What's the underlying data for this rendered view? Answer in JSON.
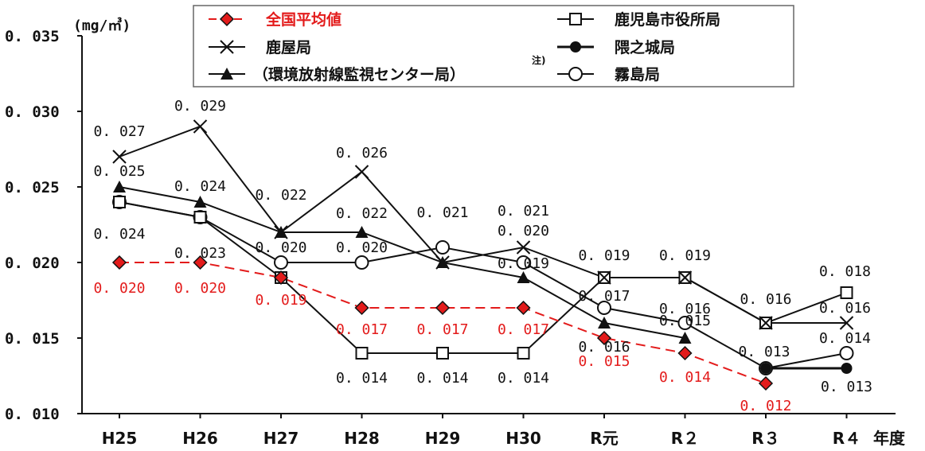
{
  "chart_data": {
    "type": "line",
    "unit": "(mg/㎥)",
    "xlabel": "年度",
    "categories": [
      "H25",
      "H26",
      "H27",
      "H28",
      "H29",
      "H30",
      "R元",
      "R２",
      "R３",
      "R４"
    ],
    "yticks": [
      "0.010",
      "0.015",
      "0.020",
      "0.025",
      "0.030",
      "0.035"
    ],
    "ylim": [
      0.01,
      0.035
    ],
    "note": "注)",
    "legend_placement": "top",
    "series": [
      {
        "name": "全国平均値",
        "color": "#e31b1b",
        "dash": true,
        "marker": "diamond",
        "values": [
          0.02,
          0.02,
          0.019,
          0.017,
          0.017,
          0.017,
          0.015,
          0.014,
          0.012,
          null
        ],
        "labels": [
          "0.020",
          "0.020",
          "0.019",
          "0.017",
          "0.017",
          "0.017",
          "0.015",
          "0.014",
          "0.012",
          ""
        ]
      },
      {
        "name": "鹿屋局",
        "color": "#111111",
        "marker": "x",
        "values": [
          0.027,
          0.029,
          0.022,
          0.026,
          0.02,
          0.021,
          0.019,
          0.019,
          0.016,
          0.016
        ],
        "labels": [
          "0.027",
          "0.029",
          "0.022",
          "0.026",
          "",
          "0.021",
          "0.019",
          "0.019",
          "0.016",
          "0.016"
        ]
      },
      {
        "name": "（環境放射線監視センター局）",
        "color": "#111111",
        "marker": "triangle",
        "values": [
          0.025,
          0.024,
          0.022,
          0.022,
          0.02,
          0.019,
          0.016,
          0.015,
          null,
          null
        ],
        "labels": [
          "0.025",
          "0.024",
          "",
          "0.022",
          "",
          "0.019",
          "0.016",
          "0.015",
          "",
          ""
        ]
      },
      {
        "name": "鹿児島市役所局",
        "color": "#111111",
        "marker": "square",
        "values": [
          0.024,
          0.023,
          0.019,
          0.014,
          0.014,
          0.014,
          0.019,
          0.019,
          0.016,
          0.018
        ],
        "labels": [
          "0.024",
          "0.023",
          "",
          "0.014",
          "0.014",
          "0.014",
          "",
          "",
          "",
          "0.018"
        ]
      },
      {
        "name": "隈之城局",
        "color": "#111111",
        "marker": "dot",
        "values": [
          null,
          null,
          null,
          null,
          null,
          null,
          null,
          null,
          0.013,
          0.013
        ],
        "labels": [
          "",
          "",
          "",
          "",
          "",
          "",
          "",
          "",
          "",
          "0.013"
        ]
      },
      {
        "name": "霧島局",
        "color": "#111111",
        "marker": "circle",
        "values": [
          0.024,
          0.023,
          0.02,
          0.02,
          0.021,
          0.02,
          0.017,
          0.016,
          0.013,
          0.014
        ],
        "labels": [
          "",
          "",
          "0.020",
          "0.020",
          "0.021",
          "0.020",
          "0.017",
          "0.016",
          "0.013",
          "0.014"
        ]
      }
    ]
  }
}
